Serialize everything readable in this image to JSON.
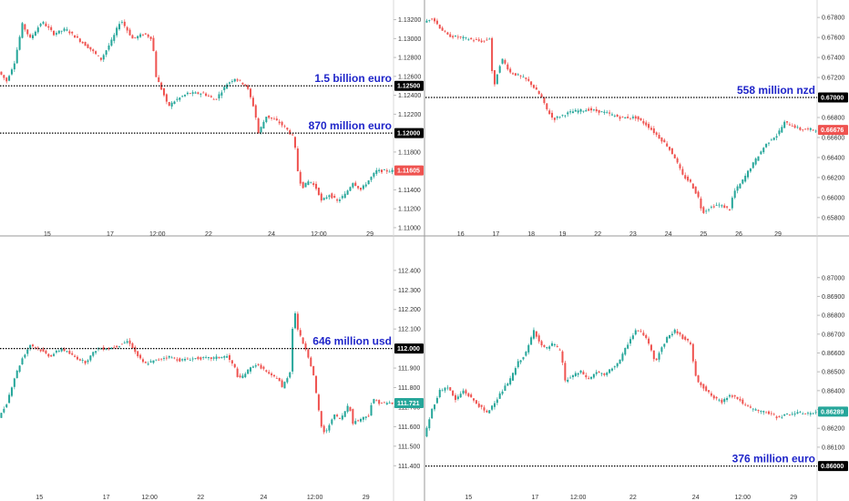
{
  "colors": {
    "up": "#26a69a",
    "down": "#ef5350",
    "annotation": "#1f25c9",
    "level_line": "#000000",
    "last_box_up": "#26a69a",
    "last_box_down": "#ef5350"
  },
  "chart_data": [
    {
      "type": "candlestick",
      "name_hint": "top-left",
      "y_ticks": [
        "1.13200",
        "1.13000",
        "1.12800",
        "1.12600",
        "1.12400",
        "1.12200",
        "1.11800",
        "1.11600",
        "1.11400",
        "1.11200",
        "1.11000"
      ],
      "ylim": [
        1.1098,
        1.1335
      ],
      "x_ticks": [
        "15",
        "17",
        "12:00",
        "22",
        "24",
        "12:00",
        "29"
      ],
      "x_tick_positions": [
        0.12,
        0.28,
        0.4,
        0.53,
        0.69,
        0.81,
        0.94
      ],
      "path": [
        [
          0,
          1.1265
        ],
        [
          0.02,
          1.1255
        ],
        [
          0.04,
          1.1275
        ],
        [
          0.06,
          1.1315
        ],
        [
          0.08,
          1.13
        ],
        [
          0.11,
          1.1318
        ],
        [
          0.14,
          1.1305
        ],
        [
          0.17,
          1.131
        ],
        [
          0.2,
          1.13
        ],
        [
          0.23,
          1.129
        ],
        [
          0.26,
          1.1278
        ],
        [
          0.29,
          1.13
        ],
        [
          0.31,
          1.132
        ],
        [
          0.34,
          1.13
        ],
        [
          0.37,
          1.1305
        ],
        [
          0.39,
          1.13
        ],
        [
          0.4,
          1.126
        ],
        [
          0.42,
          1.124
        ],
        [
          0.43,
          1.1228
        ],
        [
          0.45,
          1.1235
        ],
        [
          0.48,
          1.1242
        ],
        [
          0.52,
          1.1242
        ],
        [
          0.55,
          1.1235
        ],
        [
          0.58,
          1.1252
        ],
        [
          0.6,
          1.1258
        ],
        [
          0.63,
          1.125
        ],
        [
          0.65,
          1.1225
        ],
        [
          0.66,
          1.12
        ],
        [
          0.68,
          1.1218
        ],
        [
          0.71,
          1.1212
        ],
        [
          0.73,
          1.1205
        ],
        [
          0.75,
          1.1195
        ],
        [
          0.76,
          1.116
        ],
        [
          0.77,
          1.1142
        ],
        [
          0.79,
          1.115
        ],
        [
          0.81,
          1.114
        ],
        [
          0.82,
          1.1128
        ],
        [
          0.84,
          1.1135
        ],
        [
          0.86,
          1.1128
        ],
        [
          0.88,
          1.1135
        ],
        [
          0.9,
          1.1148
        ],
        [
          0.92,
          1.114
        ],
        [
          0.94,
          1.115
        ],
        [
          0.96,
          1.116
        ],
        [
          1.0,
          1.116
        ]
      ],
      "levels": [
        {
          "price": 1.125,
          "label": "1.12500",
          "annotation": "1.5 billion euro"
        },
        {
          "price": 1.12,
          "label": "1.12000",
          "annotation": "870 million euro"
        }
      ],
      "last": {
        "price": 1.11605,
        "label": "1.11605",
        "direction": "down"
      }
    },
    {
      "type": "candlestick",
      "name_hint": "top-right",
      "y_ticks": [
        "0.67800",
        "0.67600",
        "0.67400",
        "0.67200",
        "0.66800",
        "0.66600",
        "0.66400",
        "0.66200",
        "0.66000",
        "0.65800"
      ],
      "ylim": [
        0.6568,
        0.6792
      ],
      "x_ticks": [
        "16",
        "17",
        "18",
        "19",
        "22",
        "23",
        "24",
        "25",
        "26",
        "29"
      ],
      "x_tick_positions": [
        0.09,
        0.18,
        0.27,
        0.35,
        0.44,
        0.53,
        0.62,
        0.71,
        0.8,
        0.9
      ],
      "path": [
        [
          0,
          0.6775
        ],
        [
          0.02,
          0.678
        ],
        [
          0.04,
          0.677
        ],
        [
          0.06,
          0.6762
        ],
        [
          0.09,
          0.676
        ],
        [
          0.12,
          0.6758
        ],
        [
          0.15,
          0.6756
        ],
        [
          0.17,
          0.676
        ],
        [
          0.175,
          0.671
        ],
        [
          0.18,
          0.6712
        ],
        [
          0.19,
          0.673
        ],
        [
          0.2,
          0.6738
        ],
        [
          0.22,
          0.6725
        ],
        [
          0.24,
          0.6722
        ],
        [
          0.26,
          0.6718
        ],
        [
          0.27,
          0.6715
        ],
        [
          0.28,
          0.671
        ],
        [
          0.3,
          0.67
        ],
        [
          0.31,
          0.669
        ],
        [
          0.33,
          0.6678
        ],
        [
          0.35,
          0.6682
        ],
        [
          0.38,
          0.6686
        ],
        [
          0.42,
          0.6688
        ],
        [
          0.46,
          0.6685
        ],
        [
          0.5,
          0.668
        ],
        [
          0.54,
          0.668
        ],
        [
          0.57,
          0.6672
        ],
        [
          0.6,
          0.666
        ],
        [
          0.62,
          0.6652
        ],
        [
          0.64,
          0.664
        ],
        [
          0.66,
          0.6622
        ],
        [
          0.68,
          0.6615
        ],
        [
          0.7,
          0.66
        ],
        [
          0.71,
          0.6585
        ],
        [
          0.73,
          0.659
        ],
        [
          0.75,
          0.6593
        ],
        [
          0.77,
          0.659
        ],
        [
          0.78,
          0.6588
        ],
        [
          0.79,
          0.6605
        ],
        [
          0.81,
          0.6615
        ],
        [
          0.83,
          0.6628
        ],
        [
          0.85,
          0.664
        ],
        [
          0.87,
          0.6652
        ],
        [
          0.89,
          0.666
        ],
        [
          0.9,
          0.6662
        ],
        [
          0.92,
          0.6675
        ],
        [
          0.94,
          0.6672
        ],
        [
          0.96,
          0.6668
        ]
      ],
      "levels": [
        {
          "price": 0.67,
          "label": "0.67000",
          "annotation": "558 million nzd"
        }
      ],
      "last": {
        "price": 0.66676,
        "label": "0.66676",
        "direction": "down"
      }
    },
    {
      "type": "candlestick",
      "name_hint": "bottom-left",
      "y_ticks": [
        "112.400",
        "112.300",
        "112.200",
        "112.100",
        "111.900",
        "111.800",
        "111.700",
        "111.600",
        "111.500",
        "111.400"
      ],
      "ylim": [
        111.35,
        112.46
      ],
      "x_ticks": [
        "15",
        "17",
        "12:00",
        "22",
        "24",
        "12:00",
        "29"
      ],
      "x_tick_positions": [
        0.1,
        0.27,
        0.38,
        0.51,
        0.67,
        0.8,
        0.93
      ],
      "path": [
        [
          0,
          111.64
        ],
        [
          0.02,
          111.72
        ],
        [
          0.04,
          111.85
        ],
        [
          0.06,
          111.95
        ],
        [
          0.08,
          112.02
        ],
        [
          0.1,
          112.0
        ],
        [
          0.13,
          111.96
        ],
        [
          0.16,
          112.0
        ],
        [
          0.19,
          111.96
        ],
        [
          0.22,
          111.93
        ],
        [
          0.25,
          112.0
        ],
        [
          0.28,
          112.0
        ],
        [
          0.31,
          112.02
        ],
        [
          0.33,
          112.04
        ],
        [
          0.35,
          111.97
        ],
        [
          0.37,
          111.92
        ],
        [
          0.4,
          111.94
        ],
        [
          0.43,
          111.96
        ],
        [
          0.46,
          111.94
        ],
        [
          0.5,
          111.95
        ],
        [
          0.54,
          111.95
        ],
        [
          0.58,
          111.96
        ],
        [
          0.6,
          111.9
        ],
        [
          0.61,
          111.84
        ],
        [
          0.63,
          111.88
        ],
        [
          0.65,
          111.92
        ],
        [
          0.67,
          111.9
        ],
        [
          0.69,
          111.86
        ],
        [
          0.71,
          111.85
        ],
        [
          0.72,
          111.8
        ],
        [
          0.74,
          111.88
        ],
        [
          0.75,
          112.22
        ],
        [
          0.76,
          112.1
        ],
        [
          0.77,
          112.04
        ],
        [
          0.78,
          112.0
        ],
        [
          0.79,
          111.94
        ],
        [
          0.8,
          111.86
        ],
        [
          0.81,
          111.72
        ],
        [
          0.82,
          111.6
        ],
        [
          0.83,
          111.56
        ],
        [
          0.85,
          111.66
        ],
        [
          0.87,
          111.64
        ],
        [
          0.89,
          111.72
        ],
        [
          0.9,
          111.62
        ],
        [
          0.92,
          111.64
        ],
        [
          0.94,
          111.66
        ],
        [
          0.95,
          111.74
        ],
        [
          0.97,
          111.72
        ]
      ],
      "levels": [
        {
          "price": 112.0,
          "label": "112.000",
          "annotation": "646 million usd"
        }
      ],
      "last": {
        "price": 111.721,
        "label": "111.721",
        "direction": "up"
      }
    },
    {
      "type": "candlestick",
      "name_hint": "bottom-right",
      "y_ticks": [
        "0.87000",
        "0.86900",
        "0.86800",
        "0.86700",
        "0.86600",
        "0.86500",
        "0.86400",
        "0.86300",
        "0.86200",
        "0.86100"
      ],
      "ylim": [
        0.8594,
        0.8711
      ],
      "x_ticks": [
        "15",
        "17",
        "12:00",
        "22",
        "24",
        "12:00",
        "29"
      ],
      "x_tick_positions": [
        0.11,
        0.28,
        0.39,
        0.53,
        0.69,
        0.81,
        0.94
      ],
      "path": [
        [
          0,
          0.8615
        ],
        [
          0.02,
          0.863
        ],
        [
          0.04,
          0.864
        ],
        [
          0.06,
          0.8642
        ],
        [
          0.08,
          0.8635
        ],
        [
          0.1,
          0.864
        ],
        [
          0.12,
          0.8636
        ],
        [
          0.14,
          0.8632
        ],
        [
          0.16,
          0.8628
        ],
        [
          0.18,
          0.8634
        ],
        [
          0.2,
          0.864
        ],
        [
          0.22,
          0.8646
        ],
        [
          0.24,
          0.8655
        ],
        [
          0.26,
          0.866
        ],
        [
          0.28,
          0.8672
        ],
        [
          0.3,
          0.8664
        ],
        [
          0.31,
          0.8662
        ],
        [
          0.33,
          0.8665
        ],
        [
          0.35,
          0.866
        ],
        [
          0.36,
          0.8645
        ],
        [
          0.38,
          0.8648
        ],
        [
          0.4,
          0.865
        ],
        [
          0.42,
          0.8646
        ],
        [
          0.44,
          0.865
        ],
        [
          0.46,
          0.8648
        ],
        [
          0.48,
          0.8652
        ],
        [
          0.5,
          0.8656
        ],
        [
          0.52,
          0.8665
        ],
        [
          0.54,
          0.8672
        ],
        [
          0.56,
          0.867
        ],
        [
          0.58,
          0.8662
        ],
        [
          0.59,
          0.8655
        ],
        [
          0.6,
          0.866
        ],
        [
          0.62,
          0.8668
        ],
        [
          0.64,
          0.8672
        ],
        [
          0.66,
          0.8668
        ],
        [
          0.68,
          0.8665
        ],
        [
          0.69,
          0.865
        ],
        [
          0.7,
          0.8645
        ],
        [
          0.72,
          0.864
        ],
        [
          0.74,
          0.8636
        ],
        [
          0.76,
          0.8634
        ],
        [
          0.78,
          0.8638
        ],
        [
          0.8,
          0.8636
        ],
        [
          0.82,
          0.8632
        ],
        [
          0.84,
          0.863
        ],
        [
          0.86,
          0.8629
        ],
        [
          0.88,
          0.8628
        ],
        [
          0.9,
          0.8626
        ],
        [
          0.92,
          0.8627
        ],
        [
          0.94,
          0.8628
        ]
      ],
      "levels": [
        {
          "price": 0.86,
          "label": "0.86000",
          "annotation": "376 million euro"
        }
      ],
      "last": {
        "price": 0.86289,
        "label": "0.86289",
        "direction": "up"
      }
    }
  ]
}
